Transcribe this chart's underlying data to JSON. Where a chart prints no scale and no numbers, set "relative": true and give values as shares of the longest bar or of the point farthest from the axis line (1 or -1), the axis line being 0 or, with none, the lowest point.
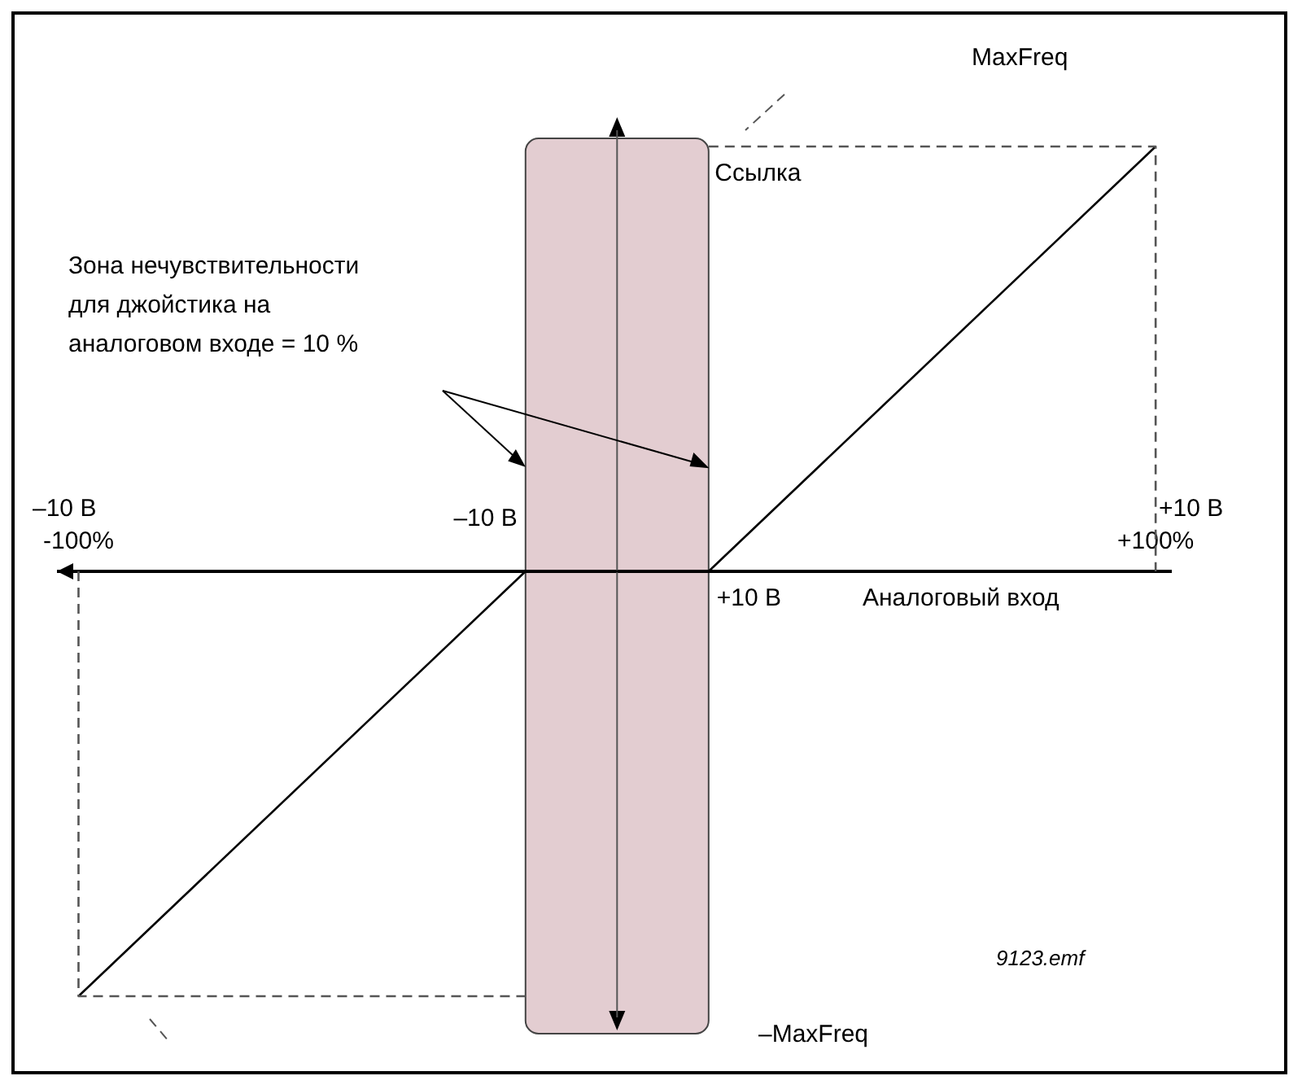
{
  "chart_data": {
    "type": "line",
    "relative": true,
    "xlabel": "Аналоговый вход",
    "ylabel": "Ссылка",
    "xlim": [
      -104,
      103
    ],
    "xticks": [
      {
        "value": -100,
        "label": "-100%"
      },
      {
        "value": 100,
        "label": "+100%"
      }
    ],
    "series": [
      {
        "color": "#000000",
        "x": [
          -100,
          -17,
          17,
          100
        ],
        "values": [
          -1,
          0,
          0,
          1
        ]
      },
      {
        "color": "#555555",
        "line_style": "dashed",
        "x": [
          17,
          100,
          100
        ],
        "values": [
          1,
          1,
          0
        ]
      },
      {
        "color": "#555555",
        "line_style": "dashed",
        "x": [
          -100,
          -100,
          -17
        ],
        "values": [
          0,
          -1,
          -1
        ]
      }
    ],
    "bands": [
      {
        "axis": "x",
        "from": -17,
        "to": 17,
        "color": "#e3cdd1"
      }
    ],
    "annotations": [
      "MaxFreq",
      "–MaxFreq",
      "Зона нечувствительности\nдля джойстика на\nаналоговом входе = 10 %",
      "–10 В",
      "+10 В",
      "9123.emf",
      "–10 В",
      "+10 В"
    ],
    "grid": false,
    "line_style": "solid",
    "marker": "none"
  }
}
